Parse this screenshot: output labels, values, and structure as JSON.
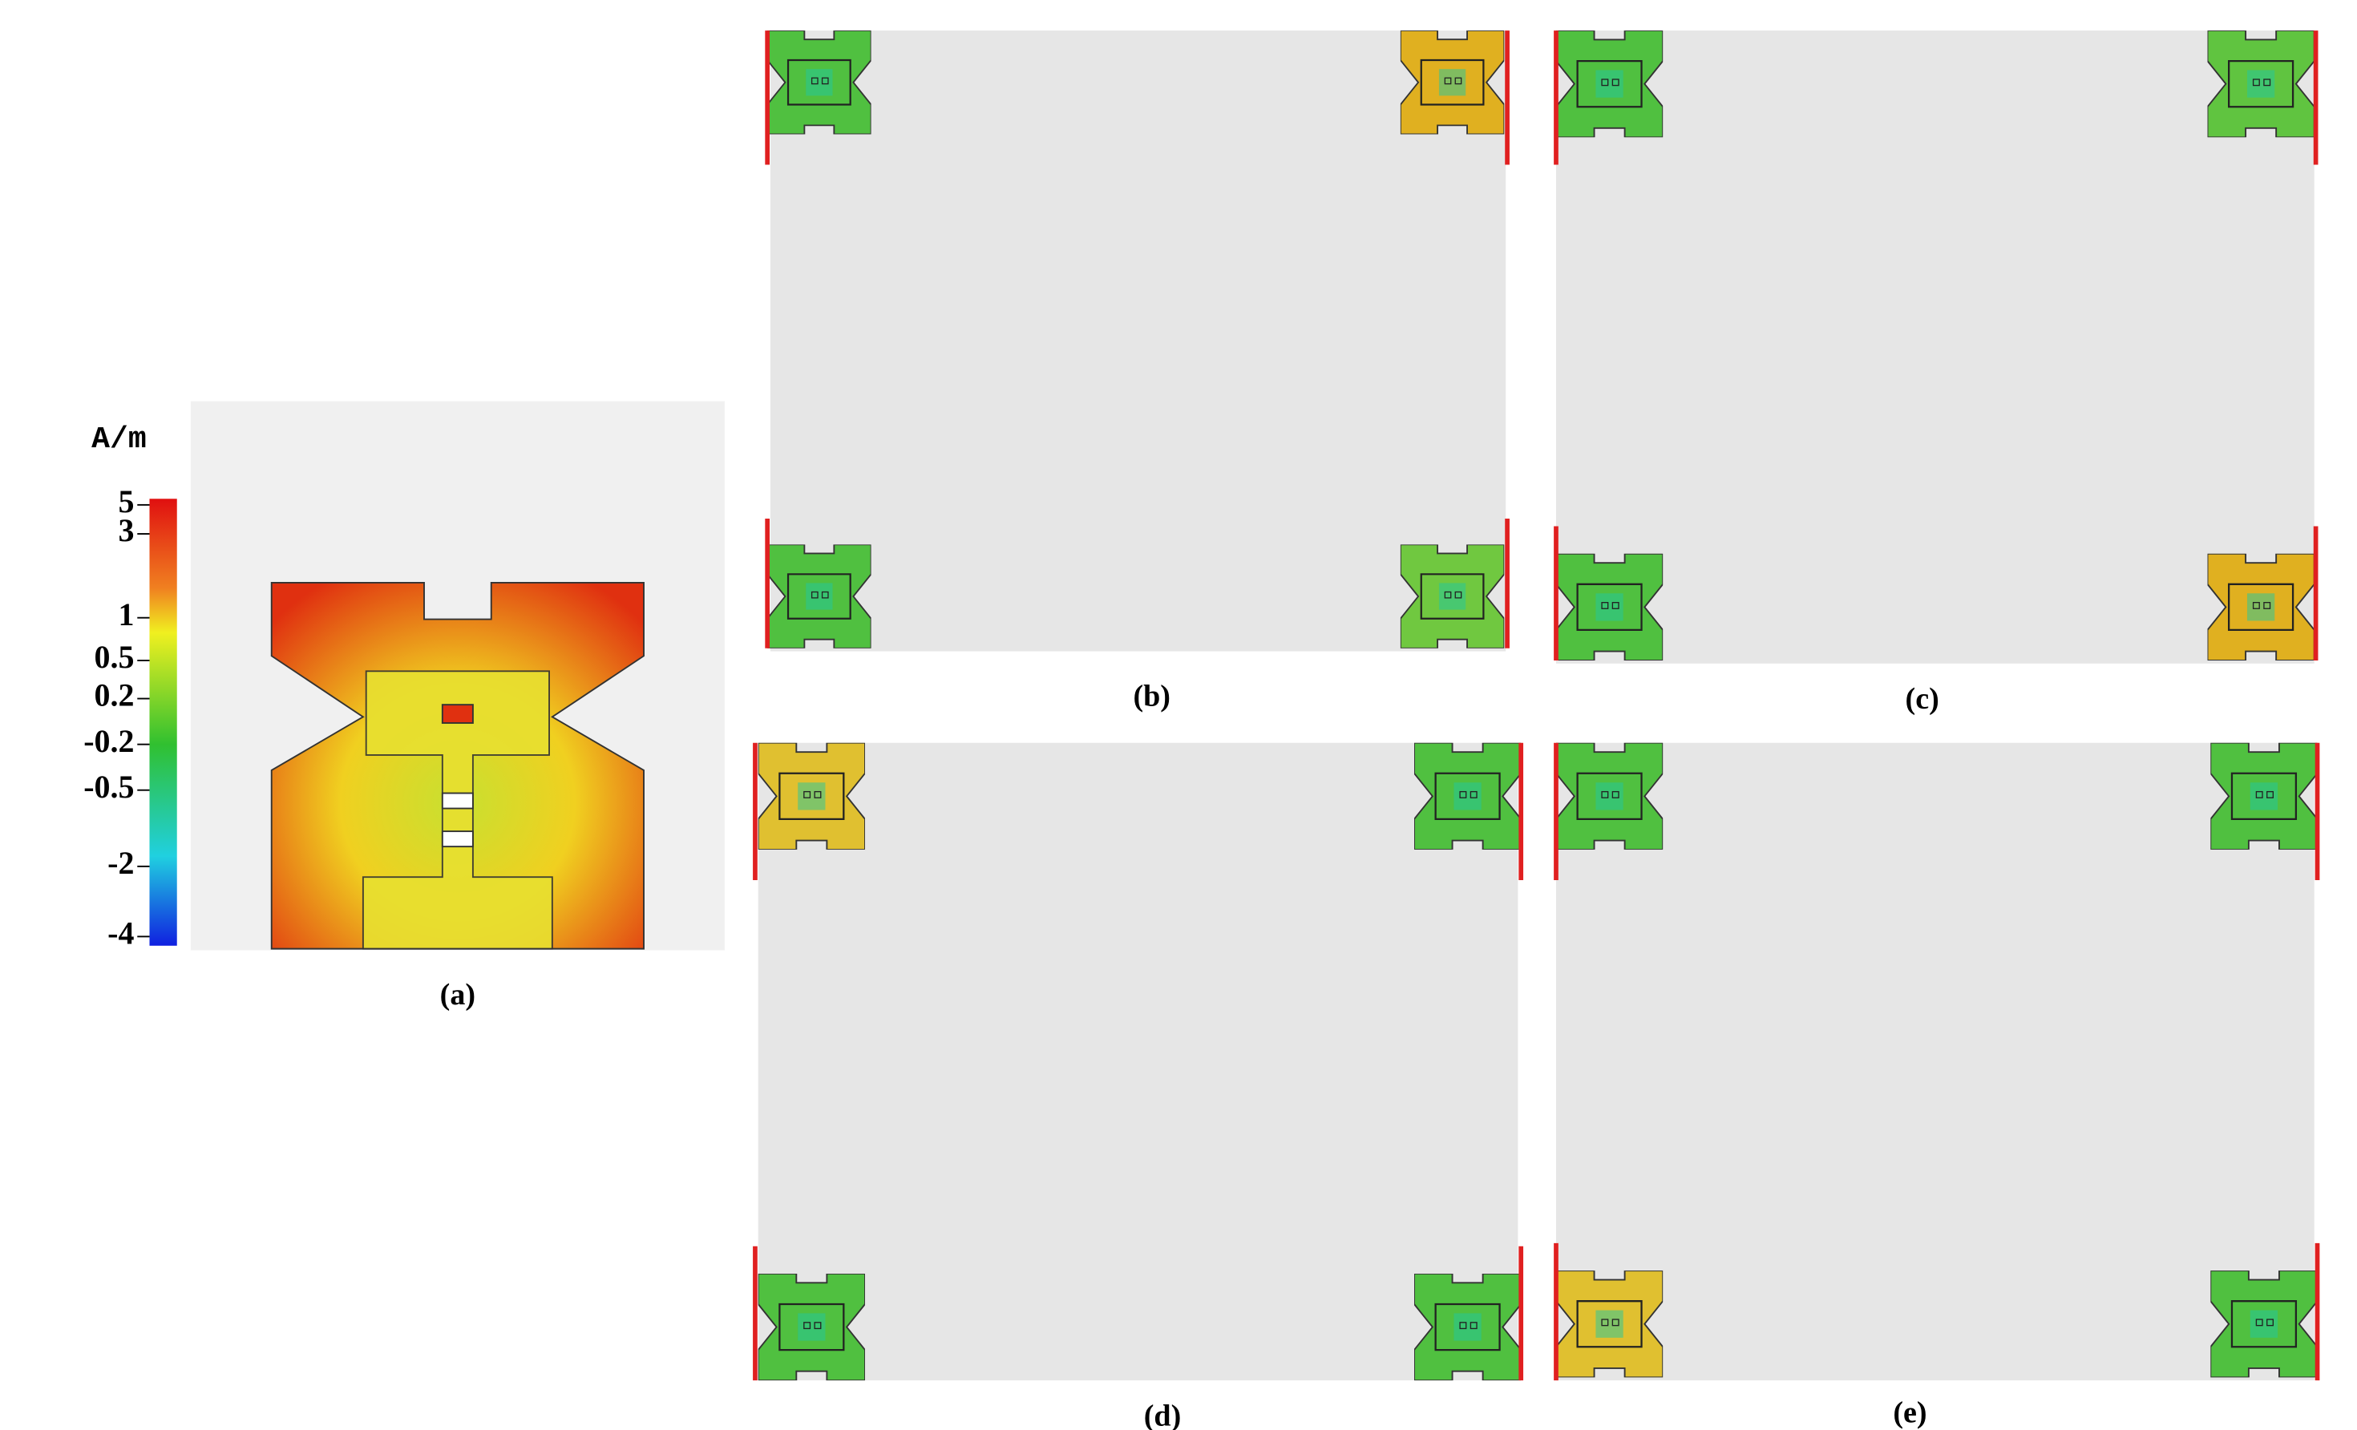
{
  "colorbar": {
    "unit": "A/m",
    "ticks": [
      "5",
      "3",
      "1",
      "0.5",
      "0.2",
      "-0.2",
      "-0.5",
      "-2",
      "-4"
    ]
  },
  "panels": [
    {
      "label": "(a)"
    },
    {
      "label": "(b)"
    },
    {
      "label": "(c)"
    },
    {
      "label": "(d)"
    },
    {
      "label": "(e)"
    }
  ]
}
